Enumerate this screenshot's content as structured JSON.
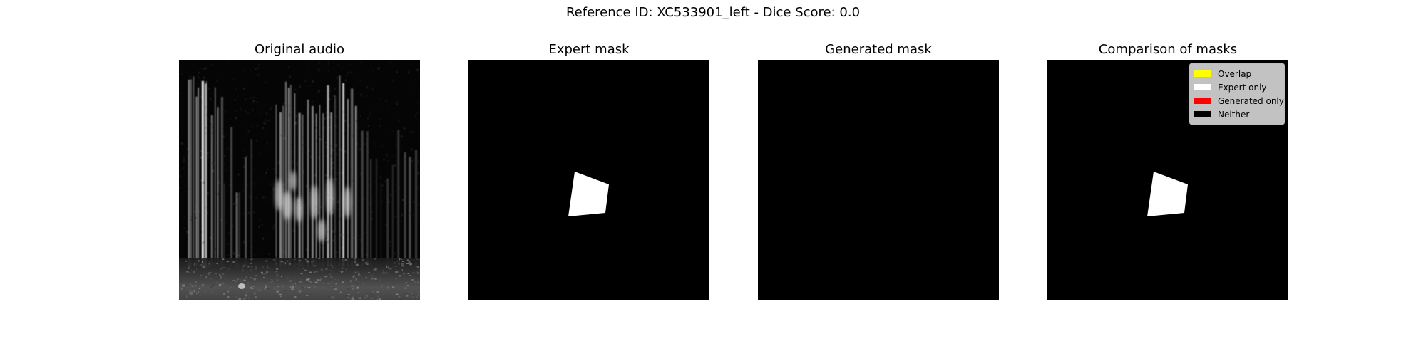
{
  "suptitle": "Reference ID: XC533901_left - Dice Score: 0.0",
  "panels": [
    {
      "title": "Original audio"
    },
    {
      "title": "Expert mask"
    },
    {
      "title": "Generated mask"
    },
    {
      "title": "Comparison of masks"
    }
  ],
  "legend": {
    "items": [
      {
        "label": "Overlap",
        "color": "#ffff00"
      },
      {
        "label": "Expert only",
        "color": "#ffffff"
      },
      {
        "label": "Generated only",
        "color": "#ff0000"
      },
      {
        "label": "Neither",
        "color": "#000000"
      }
    ]
  },
  "colors": {
    "background": "#000000",
    "expert_region": "#ffffff"
  }
}
